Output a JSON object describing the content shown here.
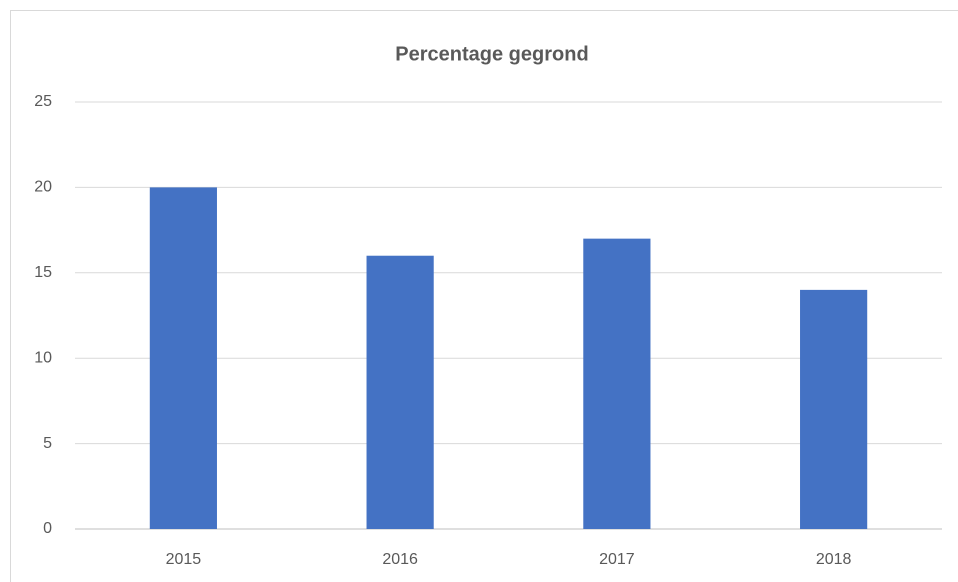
{
  "chart_data": {
    "type": "bar",
    "title": "Percentage gegrond",
    "categories": [
      "2015",
      "2016",
      "2017",
      "2018"
    ],
    "values": [
      20,
      16,
      17,
      14
    ],
    "color": "#4472c4",
    "ylim": [
      0,
      25
    ],
    "yticks": [
      0,
      5,
      10,
      15,
      20,
      25
    ],
    "grid": true
  }
}
